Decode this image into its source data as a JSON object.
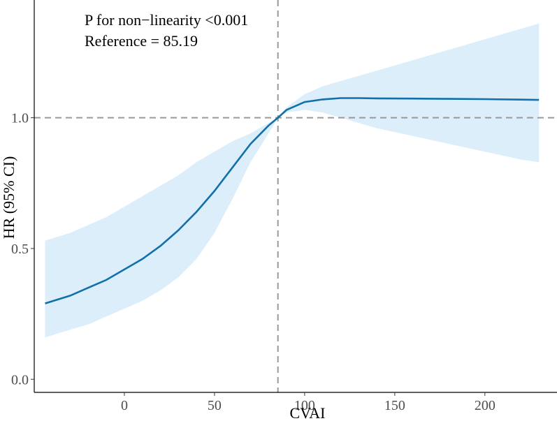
{
  "chart_data": {
    "type": "line",
    "title": "",
    "xlabel": "CVAI",
    "ylabel": "HR (95% CI)",
    "xlim": [
      -50,
      240
    ],
    "ylim": [
      -0.05,
      1.45
    ],
    "x_ticks": [
      0,
      50,
      100,
      150,
      200
    ],
    "x_tick_labels": [
      "0",
      "50",
      "100",
      "150",
      "200"
    ],
    "y_ticks": [
      0.0,
      0.5,
      1.0
    ],
    "y_tick_labels": [
      "0.0",
      "0.5",
      "1.0"
    ],
    "grid": false,
    "reference_lines": {
      "x": 85.19,
      "y": 1.0
    },
    "annotations": [
      "P for non−linearity <0.001",
      "Reference = 85.19"
    ],
    "colors": {
      "line": "#1170aa",
      "band": "#dbeefa",
      "reference": "#999999"
    },
    "series": [
      {
        "x": [
          -44,
          -30,
          -20,
          -10,
          0,
          10,
          20,
          30,
          40,
          50,
          60,
          70,
          80,
          85.19,
          90,
          100,
          110,
          120,
          130,
          140,
          160,
          180,
          200,
          220,
          230
        ],
        "y": [
          0.29,
          0.32,
          0.35,
          0.38,
          0.42,
          0.46,
          0.51,
          0.57,
          0.64,
          0.72,
          0.81,
          0.9,
          0.97,
          1.0,
          1.03,
          1.06,
          1.07,
          1.075,
          1.075,
          1.074,
          1.073,
          1.072,
          1.071,
          1.069,
          1.068
        ],
        "lower": [
          0.16,
          0.19,
          0.21,
          0.24,
          0.27,
          0.3,
          0.34,
          0.39,
          0.46,
          0.56,
          0.69,
          0.83,
          0.94,
          1.0,
          1.02,
          1.03,
          1.02,
          1.0,
          0.98,
          0.96,
          0.93,
          0.9,
          0.87,
          0.84,
          0.83
        ],
        "upper": [
          0.53,
          0.56,
          0.59,
          0.62,
          0.66,
          0.7,
          0.74,
          0.78,
          0.83,
          0.87,
          0.91,
          0.94,
          0.98,
          1.0,
          1.04,
          1.09,
          1.12,
          1.14,
          1.16,
          1.18,
          1.22,
          1.26,
          1.3,
          1.34,
          1.36
        ]
      }
    ]
  }
}
